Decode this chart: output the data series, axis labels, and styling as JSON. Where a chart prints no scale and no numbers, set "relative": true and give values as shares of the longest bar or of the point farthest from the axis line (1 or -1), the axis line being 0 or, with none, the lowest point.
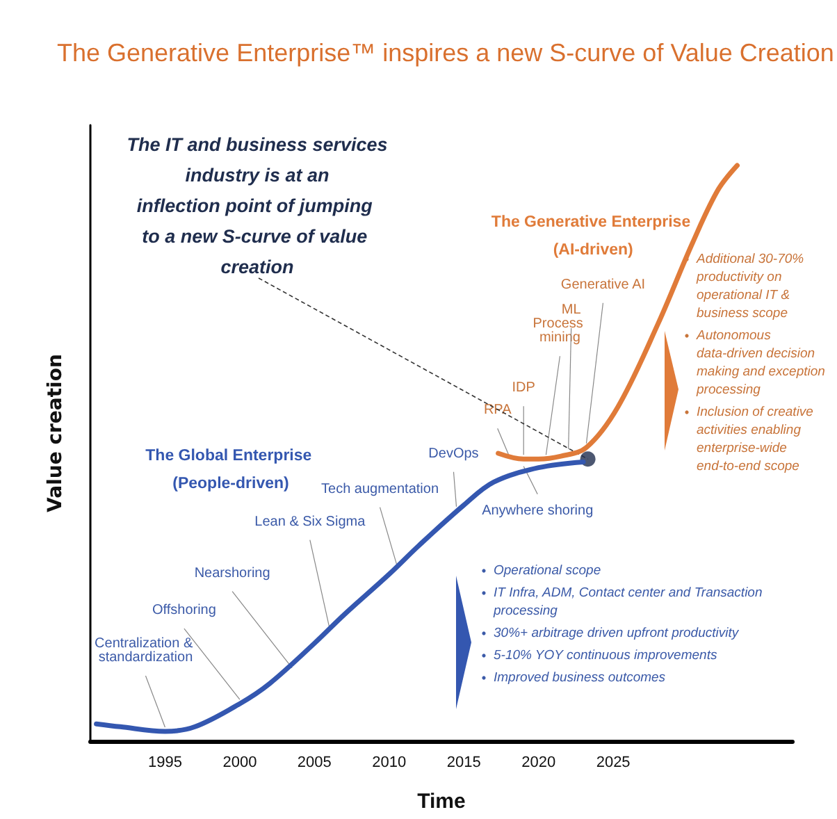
{
  "chart_data": {
    "type": "line",
    "relative": true,
    "title": "The Generative Enterprise™ inspires a new S-curve of Value Creation",
    "xlabel": "Time",
    "ylabel": "Value creation",
    "xlim": [
      1990,
      2037
    ],
    "xticks": [
      1995,
      2000,
      2005,
      2010,
      2015,
      2020,
      2025
    ],
    "tick_labels": "x",
    "grid": false,
    "legend": false,
    "line_style": "solid",
    "series": [
      {
        "name": "The Global Enterprise (People-driven)",
        "color": "#3457b0",
        "x": [
          1990.4,
          1992,
          1995,
          1997,
          2000,
          2002,
          2005,
          2007,
          2010,
          2012,
          2015,
          2017,
          2020,
          2023
        ],
        "values": [
          0.03,
          0.025,
          0.017,
          0.025,
          0.065,
          0.1,
          0.17,
          0.22,
          0.29,
          0.34,
          0.41,
          0.45,
          0.475,
          0.485
        ]
      },
      {
        "name": "The Generative Enterprise (AI-driven)",
        "color": "#e07b39",
        "x": [
          2017.3,
          2019,
          2020,
          2021.5,
          2023.2,
          2025.3,
          2028,
          2030.3,
          2032,
          2033.3
        ],
        "values": [
          0.5,
          0.49,
          0.49,
          0.495,
          0.51,
          0.58,
          0.725,
          0.865,
          0.957,
          1
        ]
      },
      {
        "type": "scatter",
        "color": "#1f2d4d",
        "x": [
          2023.3
        ],
        "values": [
          0.49
        ]
      }
    ],
    "annotations": [
      {
        "text": "The IT and business services industry is at an inflection point of jumping to a new S-curve of value creation",
        "x": 2023.3,
        "y": 0.49
      },
      {
        "text": "Centralization & standardization",
        "x": 1995,
        "y": 0.017
      },
      {
        "text": "Offshoring",
        "x": 2000,
        "y": 0.065
      },
      {
        "text": "Nearshoring",
        "x": 2003.5,
        "y": 0.12
      },
      {
        "text": "Lean & Six Sigma",
        "x": 2006,
        "y": 0.19
      },
      {
        "text": "Tech augmentation",
        "x": 2010.5,
        "y": 0.3
      },
      {
        "text": "DevOps",
        "x": 2014.5,
        "y": 0.4
      },
      {
        "text": "Anywhere shoring",
        "x": 2019,
        "y": 0.47
      },
      {
        "text": "RPA",
        "x": 2018,
        "y": 0.49
      },
      {
        "text": "IDP",
        "x": 2019,
        "y": 0.49
      },
      {
        "text": "Process mining",
        "x": 2020.5,
        "y": 0.49
      },
      {
        "text": "ML",
        "x": 2022,
        "y": 0.5
      },
      {
        "text": "Generative AI",
        "x": 2023.2,
        "y": 0.51
      },
      "Operational scope",
      "IT Infra, ADM, Contact center and Transaction processing",
      "30%+ arbitrage driven upfront productivity",
      "5-10% YOY continuous improvements",
      "Improved business outcomes",
      "Additional 30-70% productivity on operational IT & business scope",
      "Autonomous data-driven decision making and exception processing",
      "Inclusion of creative activities enabling enterprise-wide end-to-end scope"
    ]
  }
}
